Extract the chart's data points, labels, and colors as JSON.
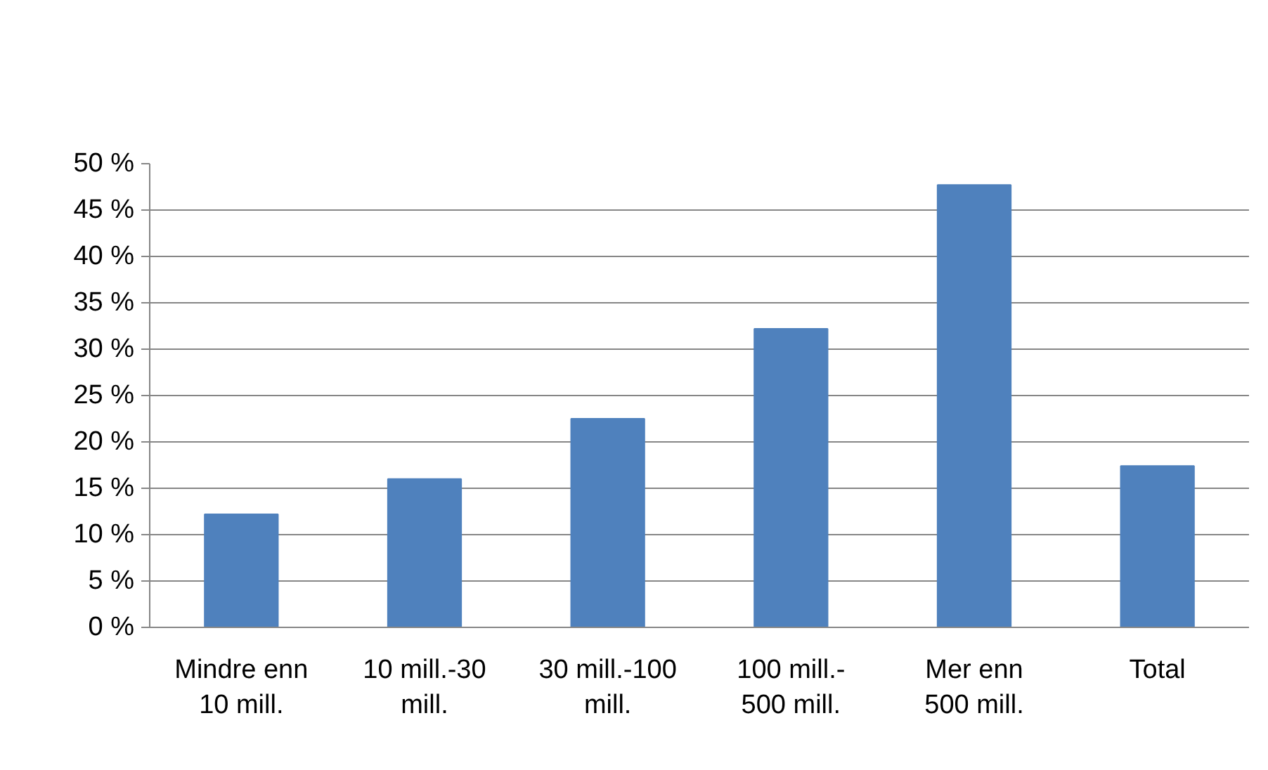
{
  "chart_data": {
    "type": "bar",
    "categories": [
      "Mindre enn\n10 mill.",
      "10 mill.-30\nmill.",
      "30 mill.-100\nmill.",
      "100 mill.-\n500 mill.",
      "Mer enn\n500 mill.",
      "Total"
    ],
    "values": [
      12.2,
      16.0,
      22.5,
      32.2,
      47.7,
      17.4
    ],
    "color": "#4f81bd",
    "ylim": [
      0,
      50
    ],
    "yticks": [
      {
        "value": 0,
        "label": "0 %"
      },
      {
        "value": 5,
        "label": "5 %"
      },
      {
        "value": 10,
        "label": "10 %"
      },
      {
        "value": 15,
        "label": "15 %"
      },
      {
        "value": 20,
        "label": "20 %"
      },
      {
        "value": 25,
        "label": "25 %"
      },
      {
        "value": 30,
        "label": "30 %"
      },
      {
        "value": 35,
        "label": "35 %"
      },
      {
        "value": 40,
        "label": "40 %"
      },
      {
        "value": 45,
        "label": "45 %"
      },
      {
        "value": 50,
        "label": "50 %"
      }
    ],
    "grid": "y"
  }
}
